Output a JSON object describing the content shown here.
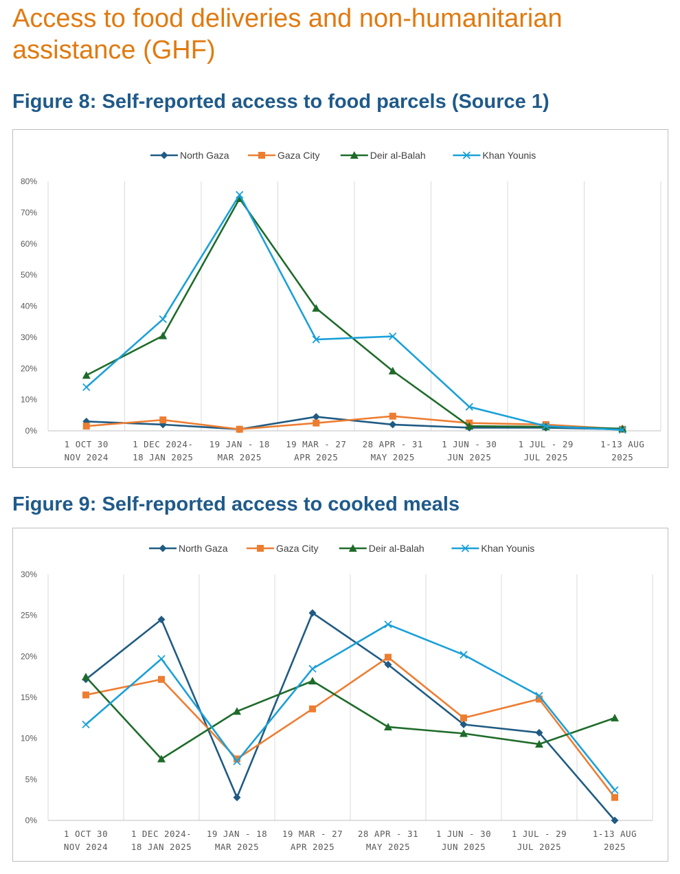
{
  "section_title": "Access to food deliveries and non-humanitarian assistance (GHF)",
  "figure8_title": "Figure 8: Self-reported access to food parcels (Source 1)",
  "figure9_title": "Figure 9: Self-reported access to cooked meals",
  "colors": {
    "north_gaza": "#1f5b82",
    "gaza_city": "#ed7d31",
    "deir_al_balah": "#1e6b2a",
    "khan_younis": "#1aa0d8"
  },
  "chart_data": [
    {
      "type": "line",
      "title": "Figure 8: Self-reported access to food parcels (Source 1)",
      "categories": [
        [
          "1 OCT  30",
          "NOV 2024"
        ],
        [
          "1 DEC 2024-",
          "18 JAN 2025"
        ],
        [
          "19 JAN - 18",
          "MAR 2025"
        ],
        [
          "19 MAR - 27",
          "APR 2025"
        ],
        [
          "28 APR - 31",
          "MAY 2025"
        ],
        [
          "1 JUN - 30",
          "JUN 2025"
        ],
        [
          "1 JUL - 29",
          "JUL 2025"
        ],
        [
          "1-13 AUG",
          "2025"
        ]
      ],
      "ylim": [
        0,
        80
      ],
      "ystep": 10,
      "ytick_labels": [
        "0%",
        "10%",
        "20%",
        "30%",
        "40%",
        "50%",
        "60%",
        "70%",
        "80%"
      ],
      "legend_position": "top-center",
      "series": [
        {
          "name": "North Gaza",
          "marker": "diamond",
          "color_key": "north_gaza",
          "values": [
            3,
            2,
            0.5,
            4.5,
            2,
            1,
            1,
            0.5
          ]
        },
        {
          "name": "Gaza City",
          "marker": "square",
          "color_key": "gaza_city",
          "values": [
            1.5,
            3.5,
            0.5,
            2.5,
            4.7,
            2.5,
            2,
            0.5
          ]
        },
        {
          "name": "Deir al-Balah",
          "marker": "triangle",
          "color_key": "deir_al_balah",
          "values": [
            17.8,
            30.5,
            74.5,
            39.3,
            19.2,
            1.5,
            1.3,
            0.7
          ]
        },
        {
          "name": "Khan Younis",
          "marker": "x",
          "color_key": "khan_younis",
          "values": [
            14,
            35.8,
            75.7,
            29.3,
            30.3,
            7.7,
            1.5,
            0.3
          ]
        }
      ]
    },
    {
      "type": "line",
      "title": "Figure 9: Self-reported access to cooked meals",
      "categories": [
        [
          "1 OCT  30",
          "NOV 2024"
        ],
        [
          "1 DEC 2024-",
          "18 JAN 2025"
        ],
        [
          "19 JAN - 18",
          "MAR 2025"
        ],
        [
          "19 MAR - 27",
          "APR 2025"
        ],
        [
          "28 APR - 31",
          "MAY 2025"
        ],
        [
          "1 JUN - 30",
          "JUN 2025"
        ],
        [
          "1 JUL - 29",
          "JUL 2025"
        ],
        [
          "1-13 AUG",
          "2025"
        ]
      ],
      "ylim": [
        0,
        30
      ],
      "ystep": 5,
      "ytick_labels": [
        "0%",
        "5%",
        "10%",
        "15%",
        "20%",
        "25%",
        "30%"
      ],
      "legend_position": "top-center",
      "series": [
        {
          "name": "North Gaza",
          "marker": "diamond",
          "color_key": "north_gaza",
          "values": [
            17.2,
            24.5,
            2.8,
            25.3,
            19,
            11.7,
            10.7,
            0
          ]
        },
        {
          "name": "Gaza City",
          "marker": "square",
          "color_key": "gaza_city",
          "values": [
            15.3,
            17.2,
            7.5,
            13.6,
            19.9,
            12.5,
            14.8,
            2.8
          ]
        },
        {
          "name": "Deir al-Balah",
          "marker": "triangle",
          "color_key": "deir_al_balah",
          "values": [
            17.5,
            7.5,
            13.3,
            17,
            11.4,
            10.6,
            9.3,
            12.5
          ]
        },
        {
          "name": "Khan Younis",
          "marker": "x",
          "color_key": "khan_younis",
          "values": [
            11.7,
            19.7,
            7.2,
            18.5,
            23.9,
            20.2,
            15.2,
            3.7
          ]
        }
      ]
    }
  ]
}
